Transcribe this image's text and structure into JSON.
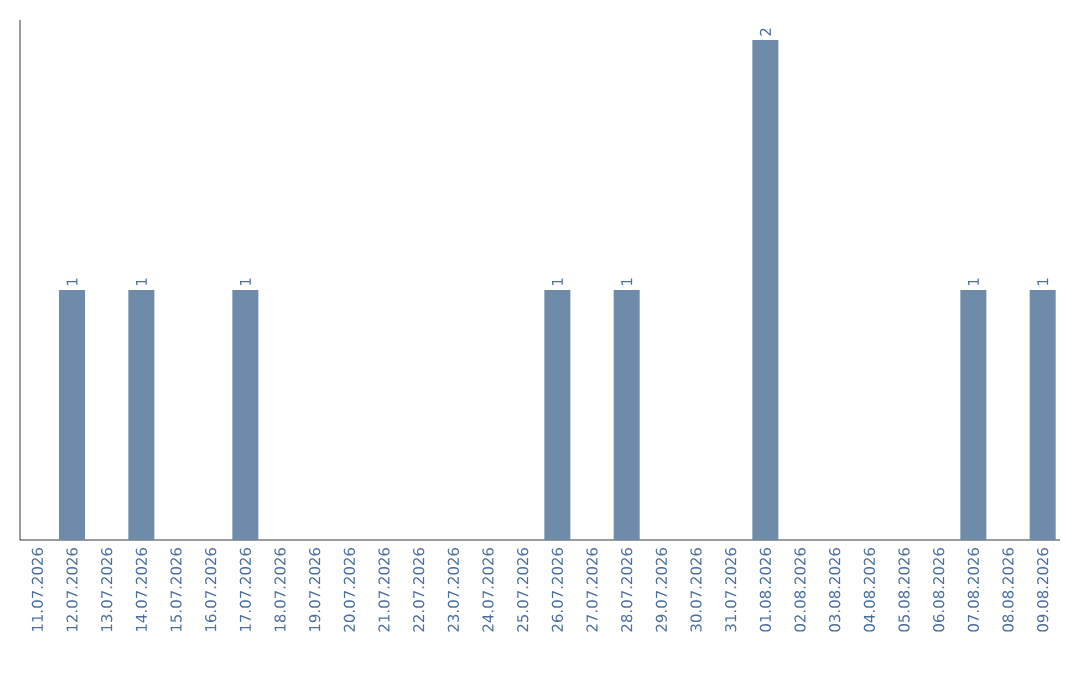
{
  "chart_data": {
    "type": "bar",
    "categories": [
      "11.07.2026",
      "12.07.2026",
      "13.07.2026",
      "14.07.2026",
      "15.07.2026",
      "16.07.2026",
      "17.07.2026",
      "18.07.2026",
      "19.07.2026",
      "20.07.2026",
      "21.07.2026",
      "22.07.2026",
      "23.07.2026",
      "24.07.2026",
      "25.07.2026",
      "26.07.2026",
      "27.07.2026",
      "28.07.2026",
      "29.07.2026",
      "30.07.2026",
      "31.07.2026",
      "01.08.2026",
      "02.08.2026",
      "03.08.2026",
      "04.08.2026",
      "05.08.2026",
      "06.08.2026",
      "07.08.2026",
      "08.08.2026",
      "09.08.2026"
    ],
    "values": [
      0,
      1,
      0,
      1,
      0,
      0,
      1,
      0,
      0,
      0,
      0,
      0,
      0,
      0,
      0,
      1,
      0,
      1,
      0,
      0,
      0,
      2,
      0,
      0,
      0,
      0,
      0,
      1,
      0,
      1
    ],
    "value_labels": [
      null,
      "1",
      null,
      "1",
      null,
      null,
      "1",
      null,
      null,
      null,
      null,
      null,
      null,
      null,
      null,
      "1",
      null,
      "1",
      null,
      null,
      null,
      "2",
      null,
      null,
      null,
      null,
      null,
      "1",
      null,
      "1"
    ],
    "color": "#6e8caa"
  }
}
